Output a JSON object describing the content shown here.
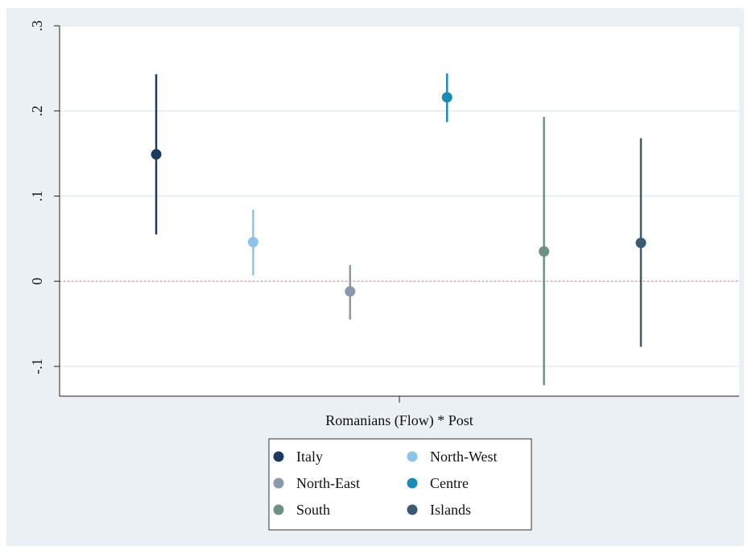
{
  "chart_data": {
    "type": "scatter",
    "title": "",
    "xlabel": "Romanians (Flow) * Post",
    "ylabel": "",
    "ylim": [
      -0.135,
      0.3
    ],
    "yticks": [
      {
        "value": 0.3,
        "label": ".3"
      },
      {
        "value": 0.2,
        "label": ".2"
      },
      {
        "value": 0.1,
        "label": ".1"
      },
      {
        "value": 0.0,
        "label": "0"
      },
      {
        "value": -0.1,
        "label": "-.1"
      }
    ],
    "grid": true,
    "reference_line": {
      "value": 0,
      "style": "dotted",
      "color": "#d9a3a3"
    },
    "legend_position": "bottom",
    "series": [
      {
        "name": "Italy",
        "estimate": 0.149,
        "ci_low": 0.055,
        "ci_high": 0.243,
        "color": "#1a3a5e"
      },
      {
        "name": "North-West",
        "estimate": 0.046,
        "ci_low": 0.007,
        "ci_high": 0.084,
        "color": "#8ec3e8"
      },
      {
        "name": "North-East",
        "estimate": -0.012,
        "ci_low": -0.045,
        "ci_high": 0.019,
        "color": "#8a98ab"
      },
      {
        "name": "Centre",
        "estimate": 0.216,
        "ci_low": 0.187,
        "ci_high": 0.244,
        "color": "#1b8bb4"
      },
      {
        "name": "South",
        "estimate": 0.035,
        "ci_low": -0.122,
        "ci_high": 0.193,
        "color": "#6f9183"
      },
      {
        "name": "Islands",
        "estimate": 0.045,
        "ci_low": -0.077,
        "ci_high": 0.168,
        "color": "#3c5a72"
      }
    ]
  }
}
